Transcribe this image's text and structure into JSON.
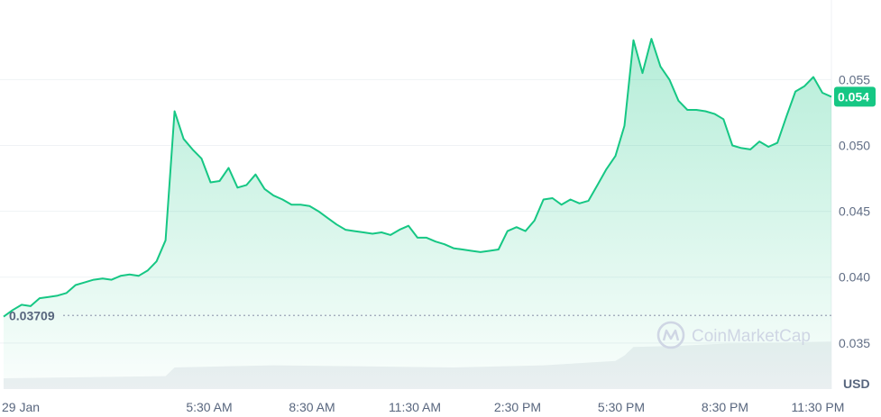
{
  "chart_data": {
    "type": "area",
    "unit_label": "USD",
    "watermark": "CoinMarketCap",
    "y_ticks": [
      "0.035",
      "0.040",
      "0.045",
      "0.050",
      "0.055"
    ],
    "ylim": [
      0.0315,
      0.0605
    ],
    "x_ticks": [
      "29 Jan",
      "5:30 AM",
      "8:30 AM",
      "11:30 AM",
      "2:30 PM",
      "5:30 PM",
      "8:30 PM",
      "11:30 PM"
    ],
    "reference_value": 0.03709,
    "reference_label": "0.03709",
    "current_value": 0.0537,
    "current_label": "0.054",
    "grid": true,
    "colors": {
      "line": "#16c784",
      "fill_top": "#16c784",
      "volume": "#eef0f3",
      "badge": "#16c784"
    },
    "price_points": [
      [
        0,
        0.037
      ],
      [
        1,
        0.0375
      ],
      [
        2,
        0.0379
      ],
      [
        3,
        0.0378
      ],
      [
        4,
        0.0384
      ],
      [
        5,
        0.0385
      ],
      [
        6,
        0.0386
      ],
      [
        7,
        0.0388
      ],
      [
        8,
        0.0394
      ],
      [
        9,
        0.0396
      ],
      [
        10,
        0.0398
      ],
      [
        11,
        0.0399
      ],
      [
        12,
        0.0398
      ],
      [
        13,
        0.0401
      ],
      [
        14,
        0.0402
      ],
      [
        15,
        0.0401
      ],
      [
        16,
        0.0405
      ],
      [
        17,
        0.0412
      ],
      [
        18,
        0.0428
      ],
      [
        19,
        0.0526
      ],
      [
        20,
        0.0505
      ],
      [
        21,
        0.0497
      ],
      [
        22,
        0.049
      ],
      [
        23,
        0.0472
      ],
      [
        24,
        0.0473
      ],
      [
        25,
        0.0483
      ],
      [
        26,
        0.0468
      ],
      [
        27,
        0.047
      ],
      [
        28,
        0.0478
      ],
      [
        29,
        0.0467
      ],
      [
        30,
        0.0462
      ],
      [
        31,
        0.0459
      ],
      [
        32,
        0.0455
      ],
      [
        33,
        0.0455
      ],
      [
        34,
        0.0454
      ],
      [
        35,
        0.045
      ],
      [
        36,
        0.0445
      ],
      [
        37,
        0.044
      ],
      [
        38,
        0.0436
      ],
      [
        39,
        0.0435
      ],
      [
        40,
        0.0434
      ],
      [
        41,
        0.0433
      ],
      [
        42,
        0.0434
      ],
      [
        43,
        0.0432
      ],
      [
        44,
        0.0436
      ],
      [
        45,
        0.0439
      ],
      [
        46,
        0.043
      ],
      [
        47,
        0.043
      ],
      [
        48,
        0.0427
      ],
      [
        49,
        0.0425
      ],
      [
        50,
        0.0422
      ],
      [
        51,
        0.0421
      ],
      [
        52,
        0.042
      ],
      [
        53,
        0.0419
      ],
      [
        54,
        0.042
      ],
      [
        55,
        0.0421
      ],
      [
        56,
        0.0435
      ],
      [
        57,
        0.0438
      ],
      [
        58,
        0.0435
      ],
      [
        59,
        0.0443
      ],
      [
        60,
        0.0459
      ],
      [
        61,
        0.046
      ],
      [
        62,
        0.0455
      ],
      [
        63,
        0.0459
      ],
      [
        64,
        0.0456
      ],
      [
        65,
        0.0458
      ],
      [
        66,
        0.047
      ],
      [
        67,
        0.0482
      ],
      [
        68,
        0.0492
      ],
      [
        69,
        0.0515
      ],
      [
        70,
        0.058
      ],
      [
        71,
        0.0555
      ],
      [
        72,
        0.0581
      ],
      [
        73,
        0.056
      ],
      [
        74,
        0.055
      ],
      [
        75,
        0.0534
      ],
      [
        76,
        0.0527
      ],
      [
        77,
        0.0527
      ],
      [
        78,
        0.0526
      ],
      [
        79,
        0.0524
      ],
      [
        80,
        0.052
      ],
      [
        81,
        0.05
      ],
      [
        82,
        0.0498
      ],
      [
        83,
        0.0497
      ],
      [
        84,
        0.0503
      ],
      [
        85,
        0.0499
      ],
      [
        86,
        0.0502
      ],
      [
        87,
        0.0522
      ],
      [
        88,
        0.0541
      ],
      [
        89,
        0.0545
      ],
      [
        90,
        0.0552
      ],
      [
        91,
        0.054
      ],
      [
        92,
        0.0537
      ]
    ],
    "volume_points": [
      [
        0,
        0.2
      ],
      [
        18,
        0.24
      ],
      [
        19,
        0.4
      ],
      [
        30,
        0.44
      ],
      [
        40,
        0.42
      ],
      [
        50,
        0.4
      ],
      [
        60,
        0.44
      ],
      [
        68,
        0.52
      ],
      [
        69,
        0.62
      ],
      [
        70,
        0.78
      ],
      [
        75,
        0.8
      ],
      [
        80,
        0.84
      ],
      [
        92,
        0.88
      ]
    ]
  }
}
